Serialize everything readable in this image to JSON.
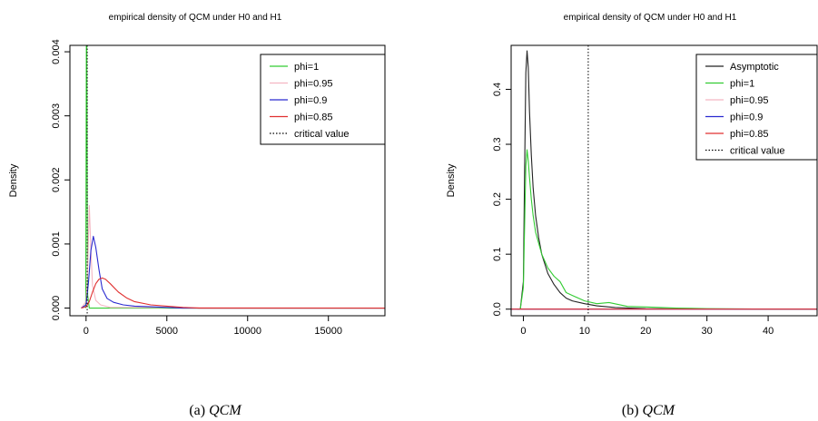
{
  "chart_data": [
    {
      "type": "line",
      "title": "empirical density of QCM under H0 and H1",
      "ylabel": "Density",
      "xlabel": "",
      "xlim": [
        -1000,
        18500
      ],
      "ylim": [
        -0.00012,
        0.0041
      ],
      "xticks": [
        0,
        5000,
        10000,
        15000
      ],
      "xtick_labels": [
        "0",
        "5000",
        "10000",
        "15000"
      ],
      "yticks": [
        0,
        0.001,
        0.002,
        0.003,
        0.004
      ],
      "ytick_labels": [
        "0.000",
        "0.001",
        "0.002",
        "0.003",
        "0.004"
      ],
      "critical_value": 70,
      "legend": "top-right",
      "legend_entries": [
        {
          "label": "phi=1",
          "color": "#33cc33",
          "dash": ""
        },
        {
          "label": "phi=0.95",
          "color": "#f4b6c2",
          "dash": ""
        },
        {
          "label": "phi=0.9",
          "color": "#2a2ad0",
          "dash": ""
        },
        {
          "label": "phi=0.85",
          "color": "#e03030",
          "dash": ""
        },
        {
          "label": "critical value",
          "color": "#000000",
          "dash": "1.5,2"
        }
      ],
      "series": [
        {
          "name": "phi=1",
          "color": "#33cc33",
          "x": [
            -20,
            0,
            20,
            40,
            60,
            80,
            100,
            200,
            18500
          ],
          "y": [
            0,
            0.002,
            0.0042,
            0.0042,
            0.003,
            0.001,
            0.0002,
            0,
            0
          ]
        },
        {
          "name": "phi=0.95",
          "color": "#f4b6c2",
          "x": [
            -300,
            0,
            100,
            200,
            300,
            400,
            600,
            900,
            1500,
            18500
          ],
          "y": [
            0,
            0.0001,
            0.0006,
            0.0016,
            0.0009,
            0.00035,
            0.00012,
            5e-05,
            1e-05,
            0
          ]
        },
        {
          "name": "phi=0.9",
          "color": "#2a2ad0",
          "x": [
            -300,
            0,
            150,
            300,
            450,
            600,
            800,
            1000,
            1300,
            1700,
            2300,
            3000,
            4000,
            5000,
            6000,
            18500
          ],
          "y": [
            0,
            5e-05,
            0.0004,
            0.0009,
            0.00112,
            0.00095,
            0.0006,
            0.0003,
            0.00015,
            9e-05,
            5e-05,
            3e-05,
            2e-05,
            1e-05,
            0,
            0
          ]
        },
        {
          "name": "phi=0.85",
          "color": "#e03030",
          "x": [
            -300,
            0,
            200,
            400,
            600,
            800,
            1000,
            1200,
            1500,
            2000,
            2500,
            3000,
            4000,
            5000,
            6000,
            7000,
            18500
          ],
          "y": [
            0,
            2e-05,
            0.0001,
            0.00025,
            0.00038,
            0.00045,
            0.00047,
            0.00045,
            0.00038,
            0.00025,
            0.00016,
            0.0001,
            5e-05,
            3e-05,
            1e-05,
            0,
            0
          ]
        }
      ]
    },
    {
      "type": "line",
      "title": "empirical density of QCM under H0 and H1",
      "ylabel": "Density",
      "xlabel": "",
      "xlim": [
        -2,
        48
      ],
      "ylim": [
        -0.012,
        0.48
      ],
      "xticks": [
        0,
        10,
        20,
        30,
        40
      ],
      "xtick_labels": [
        "0",
        "10",
        "20",
        "30",
        "40"
      ],
      "yticks": [
        0,
        0.1,
        0.2,
        0.3,
        0.4
      ],
      "ytick_labels": [
        "0.0",
        "0.1",
        "0.2",
        "0.3",
        "0.4"
      ],
      "critical_value": 10.6,
      "legend": "top-right",
      "legend_entries": [
        {
          "label": "Asymptotic",
          "color": "#222222",
          "dash": ""
        },
        {
          "label": "phi=1",
          "color": "#33cc33",
          "dash": ""
        },
        {
          "label": "phi=0.95",
          "color": "#f4b6c2",
          "dash": ""
        },
        {
          "label": "phi=0.9",
          "color": "#2a2ad0",
          "dash": ""
        },
        {
          "label": "phi=0.85",
          "color": "#e03030",
          "dash": ""
        },
        {
          "label": "critical value",
          "color": "#000000",
          "dash": "1.5,2"
        }
      ],
      "series": [
        {
          "name": "Asymptotic",
          "color": "#222222",
          "x": [
            -1,
            -0.5,
            0,
            0.2,
            0.4,
            0.6,
            0.8,
            1.0,
            1.3,
            1.6,
            2,
            2.5,
            3,
            4,
            5,
            6,
            7,
            8,
            10,
            12,
            15,
            20,
            25,
            30,
            40,
            48
          ],
          "y": [
            0,
            0,
            0.05,
            0.25,
            0.43,
            0.47,
            0.44,
            0.36,
            0.28,
            0.22,
            0.17,
            0.13,
            0.1,
            0.065,
            0.045,
            0.03,
            0.02,
            0.015,
            0.01,
            0.006,
            0.003,
            0.001,
            0.0005,
            0.0002,
            0,
            0
          ]
        },
        {
          "name": "phi=1",
          "color": "#33cc33",
          "x": [
            -1,
            -0.5,
            0,
            0.2,
            0.4,
            0.6,
            0.8,
            1.0,
            1.3,
            1.6,
            2,
            2.5,
            3,
            4,
            5,
            6,
            7,
            8,
            9,
            10,
            12,
            14,
            17,
            20,
            25,
            30,
            40,
            48
          ],
          "y": [
            0,
            0,
            0.04,
            0.15,
            0.26,
            0.29,
            0.27,
            0.24,
            0.2,
            0.17,
            0.14,
            0.12,
            0.1,
            0.075,
            0.06,
            0.05,
            0.03,
            0.025,
            0.02,
            0.015,
            0.01,
            0.012,
            0.005,
            0.004,
            0.002,
            0.001,
            0,
            0
          ]
        },
        {
          "name": "phi=0.95",
          "color": "#f4b6c2",
          "x": [
            -2,
            48
          ],
          "y": [
            0,
            0
          ]
        },
        {
          "name": "phi=0.9",
          "color": "#2a2ad0",
          "x": [
            -2,
            48
          ],
          "y": [
            0,
            0
          ]
        },
        {
          "name": "phi=0.85",
          "color": "#e03030",
          "x": [
            -2,
            48
          ],
          "y": [
            0,
            0
          ]
        }
      ]
    }
  ],
  "captions": [
    {
      "label": "(a)",
      "name": "QCM"
    },
    {
      "label": "(b)",
      "name": "QCM"
    }
  ]
}
